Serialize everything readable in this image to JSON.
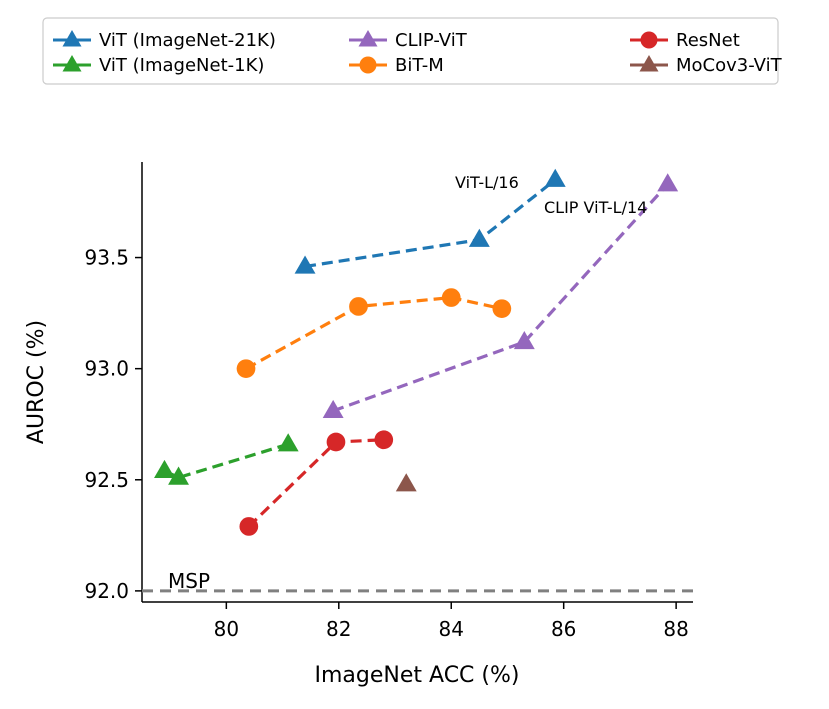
{
  "chart_data": {
    "type": "line",
    "xlabel": "ImageNet ACC (%)",
    "ylabel": "AUROC (%)",
    "xlim": [
      78.5,
      88.3
    ],
    "ylim": [
      91.95,
      93.93
    ],
    "xticks": [
      80,
      82,
      84,
      86,
      88
    ],
    "yticks": [
      92.0,
      92.5,
      93.0,
      93.5
    ],
    "ytick_labels": [
      "92.0",
      "92.5",
      "93.0",
      "93.5"
    ],
    "legend_position": "top",
    "series": [
      {
        "name": "ViT (ImageNet-21K)",
        "color": "#1f77b4",
        "marker": "triangle",
        "x": [
          81.4,
          84.5,
          85.85
        ],
        "y": [
          93.46,
          93.58,
          93.85
        ]
      },
      {
        "name": "BiT-M",
        "color": "#ff7f0e",
        "marker": "circle",
        "x": [
          80.35,
          82.35,
          84.0,
          84.9
        ],
        "y": [
          93.0,
          93.28,
          93.32,
          93.27
        ]
      },
      {
        "name": "ViT (ImageNet-1K)",
        "color": "#2ca02c",
        "marker": "triangle",
        "x": [
          78.9,
          79.15,
          81.1
        ],
        "y": [
          92.54,
          92.51,
          92.66
        ]
      },
      {
        "name": "ResNet",
        "color": "#d62728",
        "marker": "circle",
        "x": [
          80.4,
          81.95,
          82.8
        ],
        "y": [
          92.29,
          92.67,
          92.68
        ]
      },
      {
        "name": "CLIP-ViT",
        "color": "#9467bd",
        "marker": "triangle",
        "x": [
          81.9,
          85.3,
          87.85
        ],
        "y": [
          92.81,
          93.12,
          93.83
        ]
      },
      {
        "name": "MoCov3-ViT",
        "color": "#8c564b",
        "marker": "triangle",
        "noline": true,
        "x": [
          83.2
        ],
        "y": [
          92.48
        ]
      }
    ],
    "legend_order": [
      0,
      2,
      4,
      1,
      3,
      5
    ],
    "annotations": [
      {
        "text": "ViT-L/16"
      },
      {
        "text": "CLIP ViT-L/14"
      }
    ],
    "baseline": {
      "label": "MSP",
      "y": 92.0,
      "color": "#808080"
    }
  }
}
